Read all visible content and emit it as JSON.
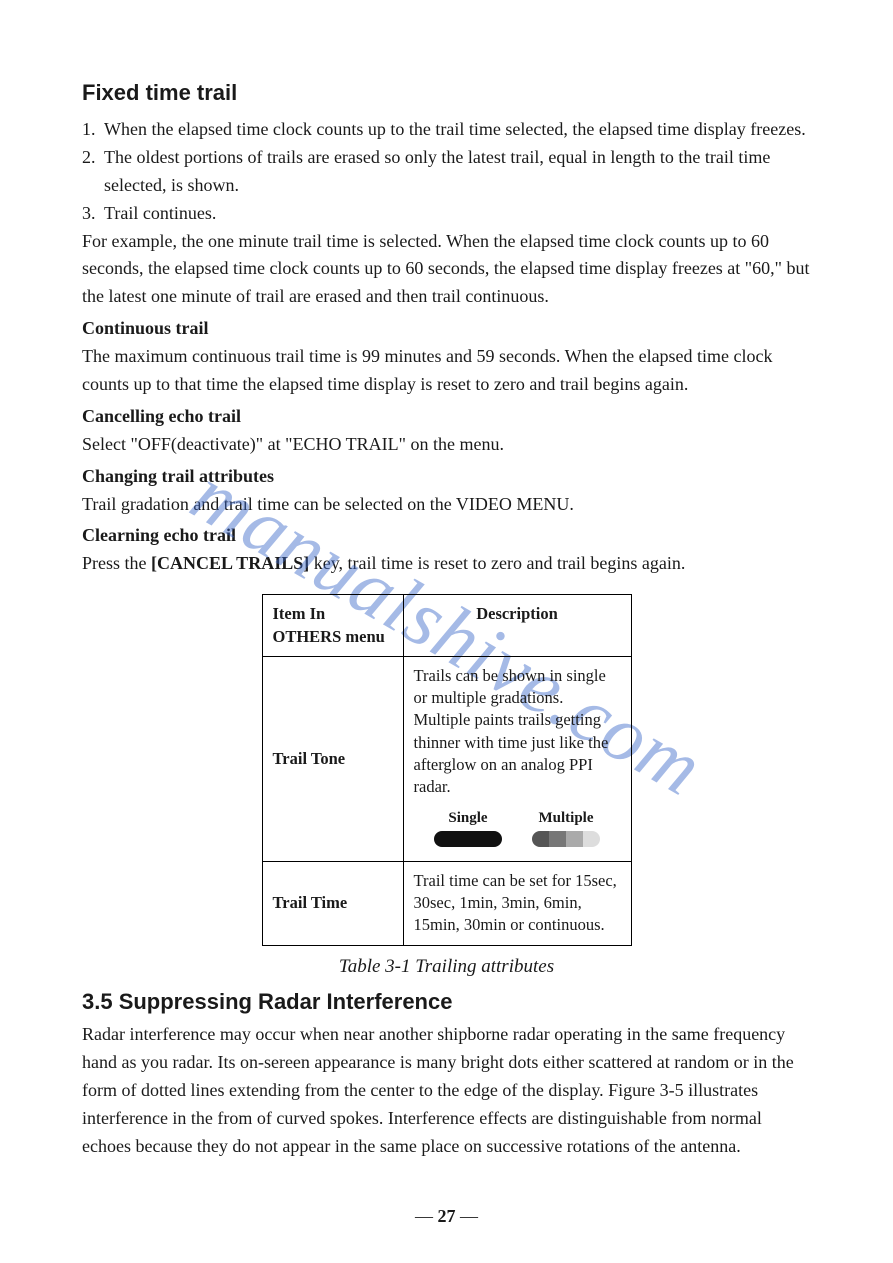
{
  "watermark": "manualshive.com",
  "section1": {
    "title": "Fixed time trail",
    "items": [
      {
        "n": "1.",
        "text": "When  the  elapsed  time  clock  counts up to the trail time selected, the elapsed time display freezes."
      },
      {
        "n": "2.",
        "text": "The  oldest  portions  of  trails are erased so only the latest trail, equal in length to the trail time selected, is shown."
      },
      {
        "n": "3.",
        "text": "Trail continues."
      }
    ],
    "example": "For  example,  the  one  minute trail time is selected. When the elapsed time clock counts  up  to  60  seconds,  the  elapsed  time  clock  counts up to 60 seconds, the elapsed  time  display  freezes  at \"60,\" but the latest one minute of trail are erased and then trail continuous.",
    "continuous_h": "Continuous trail",
    "continuous_t": "The  maximum  continuous  trail  time  is  99  minutes  and  59  seconds.  When the elapsed  time  clock counts up to that time the elapsed time display is reset to zero and trail begins again.",
    "cancel_h": "Cancelling echo trail",
    "cancel_t": "Select \"OFF(deactivate)\" at \"ECHO TRAIL\" on the menu.",
    "changing_h": "Changing trail attributes",
    "changing_t": "Trail gradation and trail time can be selected on the VIDEO MENU.",
    "clear_h": "Clearning echo trail",
    "clear_t_pre": "Press the ",
    "clear_key": "[CANCEL TRAILS]",
    "clear_t_post": " key, trail time is reset to zero and trail begins again."
  },
  "table": {
    "head1": "Item In OTHERS menu",
    "head2": "Description",
    "rows": [
      {
        "label": "Trail Tone",
        "desc": "Trails can be shown in single or multiple gradations. Multiple paints trails getting thinner with time just like the afterglow on an analog PPI radar.",
        "swatches": {
          "single": "Single",
          "multiple": "Multiple"
        }
      },
      {
        "label": "Trail Time",
        "desc": "Trail time can be set for 15sec, 30sec, 1min, 3min, 6min, 15min, 30min or continuous."
      }
    ],
    "caption": "Table 3-1 Trailing attributes"
  },
  "section2": {
    "title": "3.5 Suppressing Radar Interference",
    "body": "Radar interference may occur when near another shipborne radar operating in the same  frequency  hand  as you radar. Its on-sereen appearance is many bright dots either scattered at random or in the form of dotted lines extending from the center to  the edge of the display. Figure 3-5 illustrates interference in the from of curved spokes. Interference  effects  are  distinguishable  from normal echoes because they do not appear in the same place on successive rotations of the antenna."
  },
  "page_number": "27",
  "colors": {
    "watermark": "#3a67c9",
    "text": "#1a1a1a",
    "border": "#000000",
    "pill_single": "#111111"
  }
}
